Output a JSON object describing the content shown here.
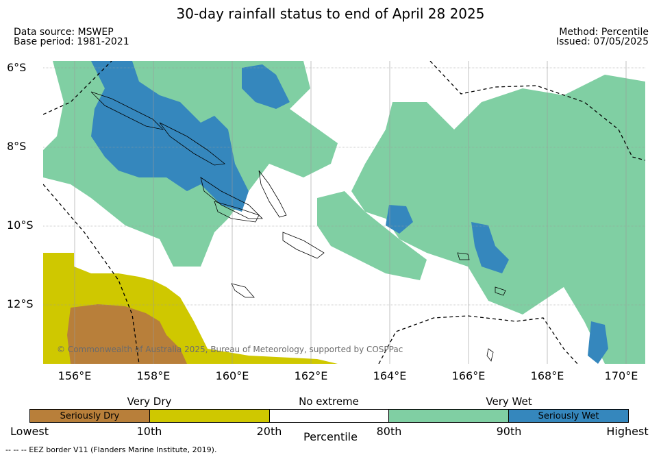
{
  "title": "30-day rainfall status to end of April 28 2025",
  "data_source": "Data source: MSWEP",
  "base_period": "Base period: 1981-2021",
  "method": "Method: Percentile",
  "issued": "Issued: 07/05/2025",
  "copyright": "© Commonwealth of Australia 2025, Bureau of Meteorology, supported by COSPPac",
  "lat_labels": [
    "6°S",
    "8°S",
    "10°S",
    "12°S"
  ],
  "lon_labels": [
    "156°E",
    "158°E",
    "160°E",
    "162°E",
    "164°E",
    "166°E",
    "168°E",
    "170°E"
  ],
  "legend": {
    "categories": [
      "Very Dry",
      "No extreme",
      "Very Wet"
    ],
    "segments": [
      {
        "label": "Seriously Dry",
        "color": "#b87f3a"
      },
      {
        "label": "",
        "color": "#cfc800"
      },
      {
        "label": "",
        "color": "#ffffff"
      },
      {
        "label": "",
        "color": "#80cfa3"
      },
      {
        "label": "Seriously Wet",
        "color": "#3587bd"
      }
    ],
    "ticks": [
      "Lowest",
      "10th",
      "20th",
      "80th",
      "90th",
      "Highest"
    ],
    "axis_label": "Percentile"
  },
  "eez_note": "--  --  -- EEZ border V11 (Flanders Marine Institute, 2019).",
  "colors": {
    "seriously_dry": "#b87f3a",
    "very_dry": "#cfc800",
    "very_wet": "#80cfa3",
    "seriously_wet": "#3587bd"
  }
}
